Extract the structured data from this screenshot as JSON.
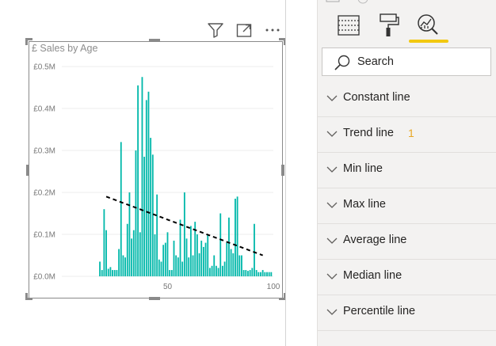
{
  "visual_header": {
    "icons": [
      "filter-icon",
      "focus-mode-icon",
      "more-options-icon"
    ]
  },
  "chart_data": {
    "type": "bar",
    "title": "£ Sales by Age",
    "xlabel": "",
    "ylabel": "",
    "xlim": [
      0,
      100
    ],
    "ylim": [
      0,
      0.5
    ],
    "y_unit": "£M",
    "y_ticks": [
      "£0.0M",
      "£0.1M",
      "£0.2M",
      "£0.3M",
      "£0.4M",
      "£0.5M"
    ],
    "x_ticks": [
      "50",
      "100"
    ],
    "grid": true,
    "bar_color": "#01b8aa",
    "ages": [
      18,
      19,
      20,
      21,
      22,
      23,
      24,
      25,
      26,
      27,
      28,
      29,
      30,
      31,
      32,
      33,
      34,
      35,
      36,
      37,
      38,
      39,
      40,
      41,
      42,
      43,
      44,
      45,
      46,
      47,
      48,
      49,
      50,
      51,
      52,
      53,
      54,
      55,
      56,
      57,
      58,
      59,
      60,
      61,
      62,
      63,
      64,
      65,
      66,
      67,
      68,
      69,
      70,
      71,
      72,
      73,
      74,
      75,
      76,
      77,
      78,
      79,
      80,
      81,
      82,
      83,
      84,
      85,
      86,
      87,
      88,
      89,
      90,
      91,
      92,
      93,
      94,
      95,
      96,
      97,
      98,
      99
    ],
    "values": [
      0.035,
      0.015,
      0.16,
      0.11,
      0.018,
      0.022,
      0.015,
      0.015,
      0.015,
      0.065,
      0.32,
      0.05,
      0.045,
      0.125,
      0.2,
      0.09,
      0.11,
      0.3,
      0.455,
      0.105,
      0.475,
      0.285,
      0.42,
      0.44,
      0.33,
      0.29,
      0.1,
      0.195,
      0.04,
      0.035,
      0.075,
      0.08,
      0.105,
      0.015,
      0.015,
      0.085,
      0.05,
      0.045,
      0.135,
      0.035,
      0.2,
      0.09,
      0.045,
      0.12,
      0.05,
      0.13,
      0.1,
      0.055,
      0.085,
      0.07,
      0.08,
      0.1,
      0.02,
      0.025,
      0.05,
      0.025,
      0.02,
      0.15,
      0.025,
      0.035,
      0.08,
      0.14,
      0.065,
      0.055,
      0.185,
      0.19,
      0.05,
      0.05,
      0.015,
      0.015,
      0.013,
      0.015,
      0.02,
      0.125,
      0.015,
      0.01,
      0.01,
      0.015,
      0.01,
      0.01,
      0.01,
      0.01
    ],
    "trend_line": {
      "label": "Trend line",
      "x": [
        21,
        95
      ],
      "y": [
        0.19,
        0.05
      ],
      "color": "#000000",
      "style": "dashed"
    }
  },
  "format_pane": {
    "tabs": [
      "fields-icon",
      "format-paintroller-icon",
      "analytics-icon"
    ],
    "active_tab": "analytics-icon",
    "accent_color": "#f2c811",
    "search": {
      "placeholder": "Search"
    },
    "sections": [
      {
        "label": "Constant line",
        "badge": ""
      },
      {
        "label": "Trend line",
        "badge": "1"
      },
      {
        "label": "Min line",
        "badge": ""
      },
      {
        "label": "Max line",
        "badge": ""
      },
      {
        "label": "Average line",
        "badge": ""
      },
      {
        "label": "Median line",
        "badge": ""
      },
      {
        "label": "Percentile line",
        "badge": ""
      }
    ]
  }
}
